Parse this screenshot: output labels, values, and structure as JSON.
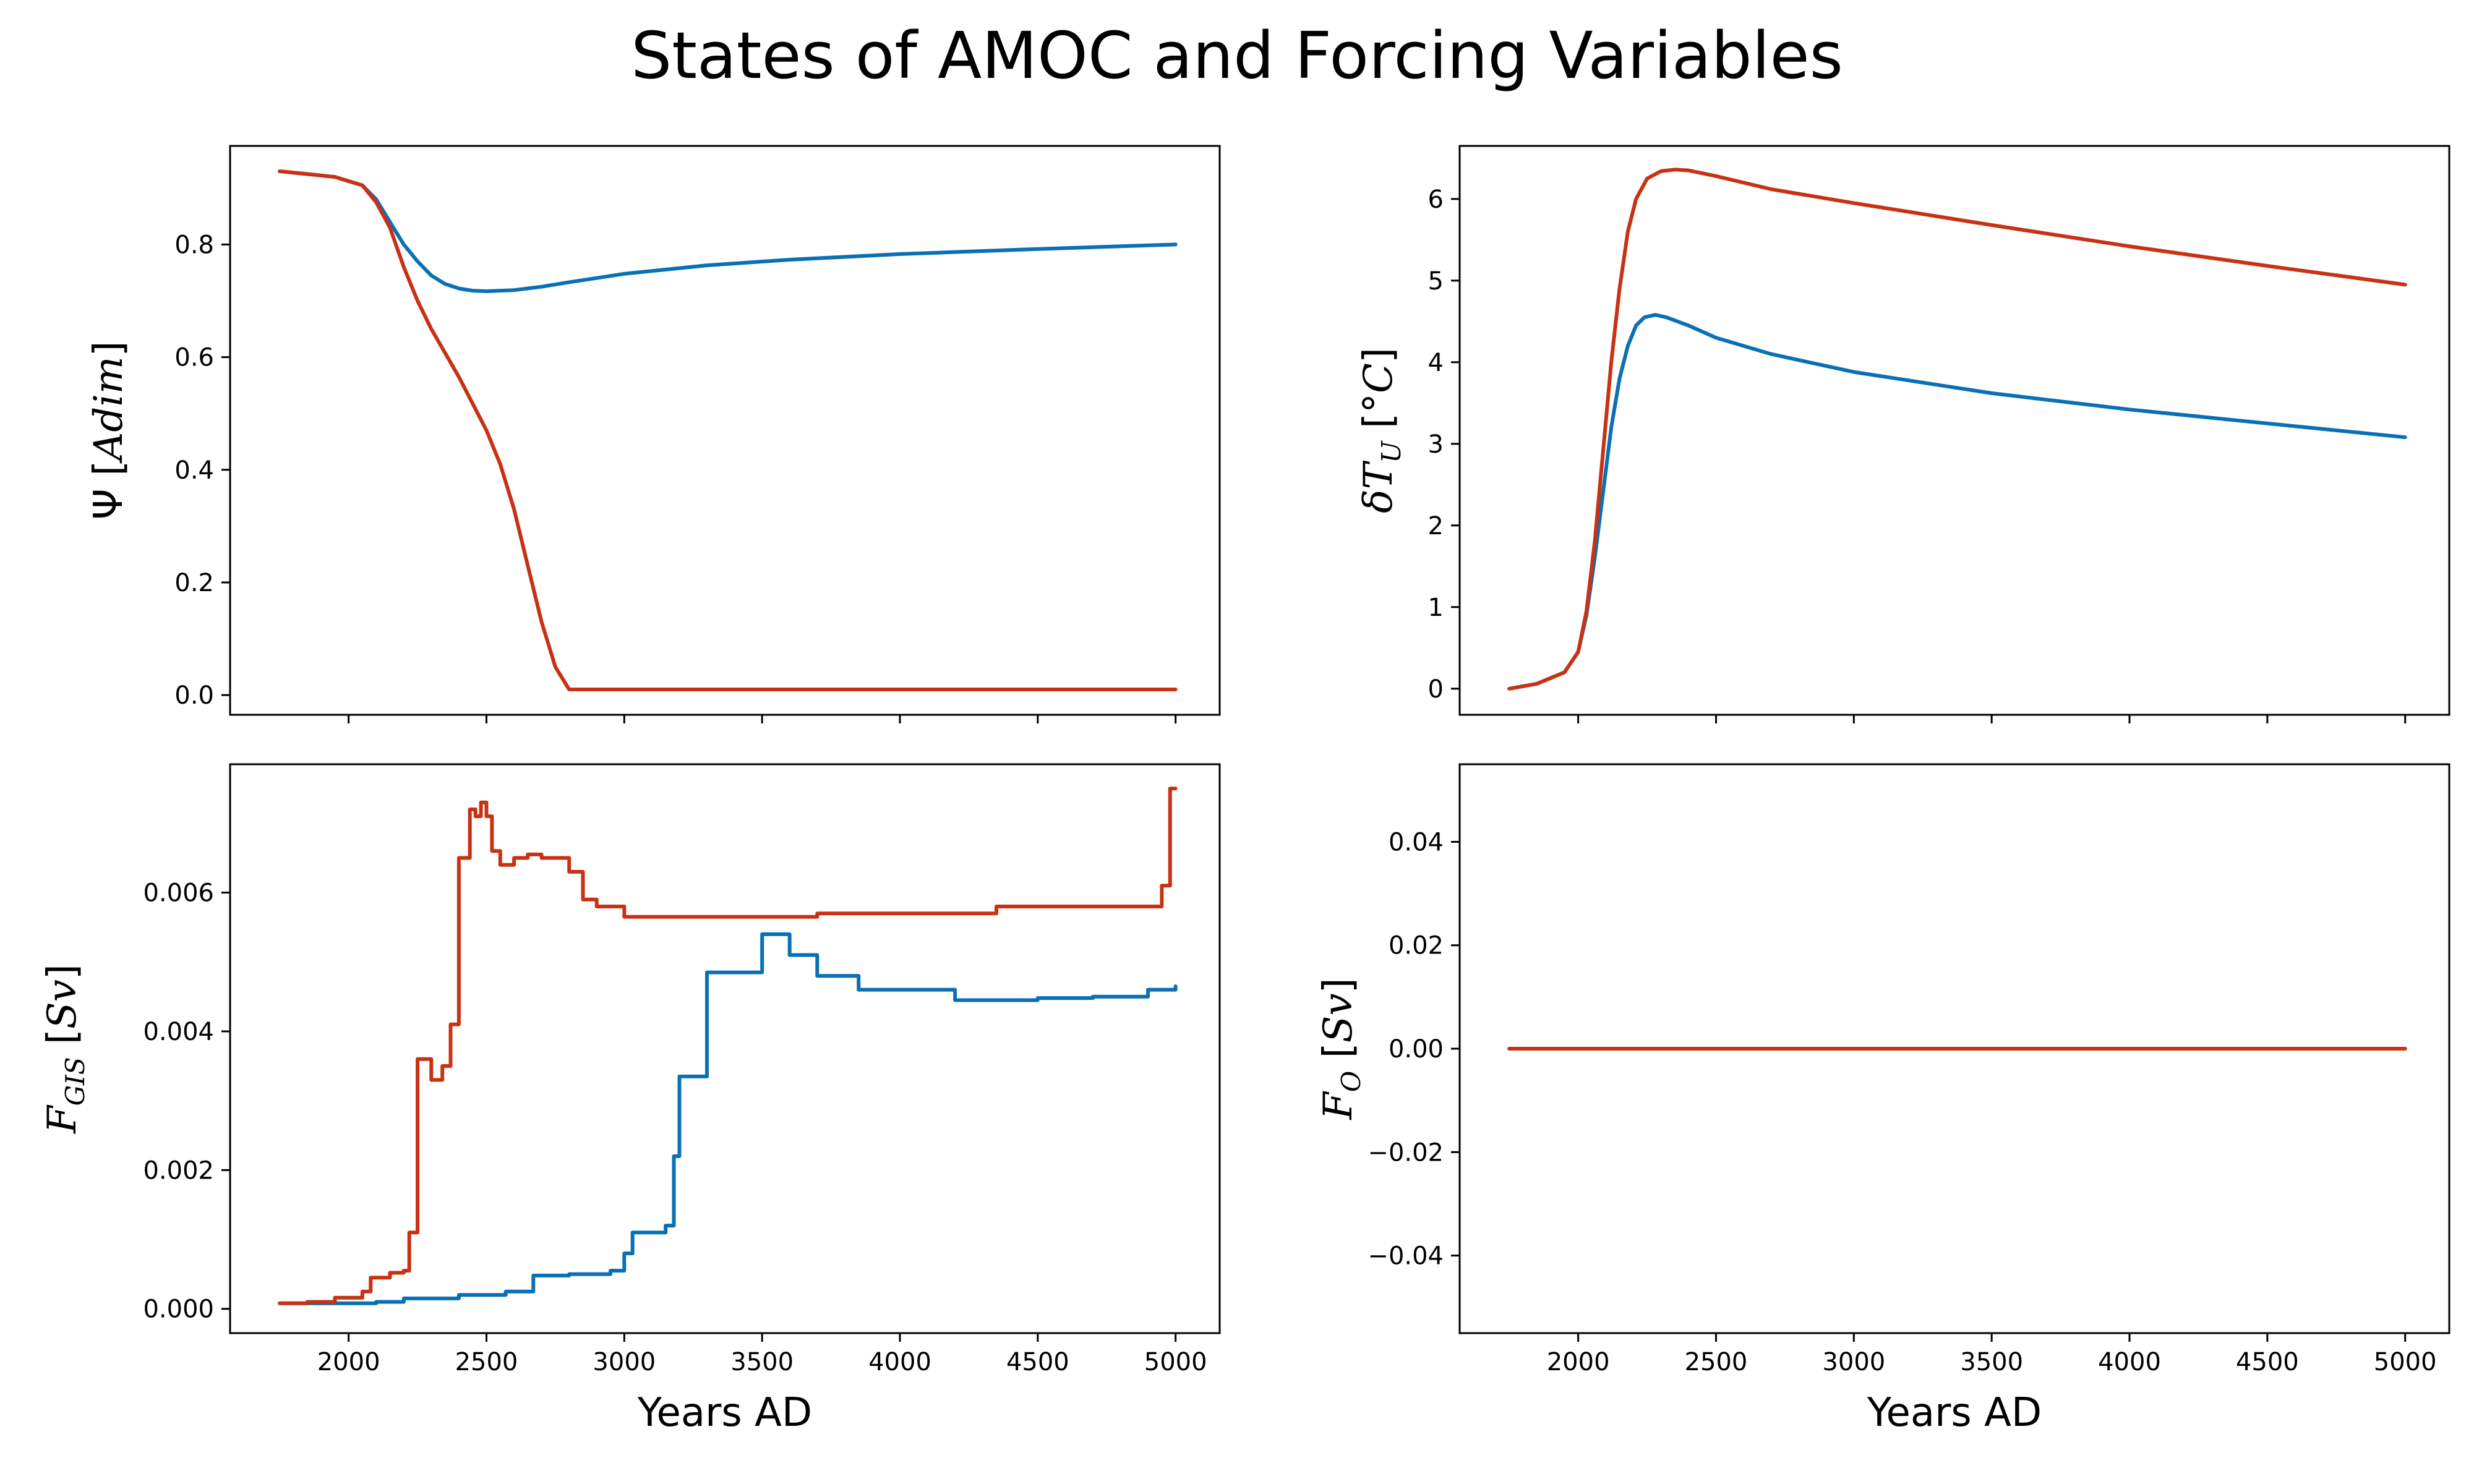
{
  "title": "States of AMOC and Forcing Variables",
  "colors": {
    "blue": "#0a70b4",
    "red": "#c83214"
  },
  "chart_data": [
    {
      "id": "psi",
      "type": "line",
      "ylabel_parts": [
        "Ψ [",
        "Adim",
        "]"
      ],
      "xlabel": "",
      "xlim": [
        1570,
        5160
      ],
      "ylim": [
        -0.035,
        0.975
      ],
      "xticks": [
        2000,
        2500,
        3000,
        3500,
        4000,
        4500,
        5000
      ],
      "xtick_labels_visible": false,
      "yticks": [
        0.0,
        0.2,
        0.4,
        0.6,
        0.8
      ],
      "ytick_labels": [
        "0.0",
        "0.2",
        "0.4",
        "0.6",
        "0.8"
      ],
      "series": [
        {
          "color": "#0a70b4",
          "x": [
            1750,
            1850,
            1950,
            2050,
            2100,
            2150,
            2200,
            2250,
            2300,
            2350,
            2400,
            2450,
            2500,
            2600,
            2700,
            2800,
            3000,
            3300,
            3600,
            4000,
            4500,
            5000
          ],
          "y": [
            0.93,
            0.925,
            0.92,
            0.905,
            0.88,
            0.84,
            0.8,
            0.77,
            0.745,
            0.73,
            0.722,
            0.718,
            0.717,
            0.719,
            0.725,
            0.733,
            0.748,
            0.763,
            0.773,
            0.783,
            0.792,
            0.8
          ]
        },
        {
          "color": "#c83214",
          "x": [
            1750,
            1850,
            1950,
            2050,
            2100,
            2150,
            2200,
            2250,
            2300,
            2400,
            2500,
            2550,
            2600,
            2650,
            2700,
            2750,
            2800,
            2820,
            3000,
            4000,
            5000
          ],
          "y": [
            0.93,
            0.925,
            0.92,
            0.905,
            0.875,
            0.83,
            0.76,
            0.7,
            0.65,
            0.565,
            0.47,
            0.41,
            0.33,
            0.23,
            0.13,
            0.05,
            0.01,
            0.01,
            0.01,
            0.01,
            0.01
          ]
        }
      ]
    },
    {
      "id": "dtu",
      "type": "line",
      "ylabel_parts": [
        "δ",
        "T",
        "U",
        " [°",
        "C",
        "]"
      ],
      "xlabel": "",
      "xlim": [
        1570,
        5160
      ],
      "ylim": [
        -0.32,
        6.65
      ],
      "xticks": [
        2000,
        2500,
        3000,
        3500,
        4000,
        4500,
        5000
      ],
      "xtick_labels_visible": false,
      "yticks": [
        0,
        1,
        2,
        3,
        4,
        5,
        6
      ],
      "ytick_labels": [
        "0",
        "1",
        "2",
        "3",
        "4",
        "5",
        "6"
      ],
      "series": [
        {
          "color": "#0a70b4",
          "x": [
            1750,
            1850,
            1950,
            2000,
            2030,
            2060,
            2090,
            2120,
            2150,
            2180,
            2210,
            2240,
            2280,
            2320,
            2400,
            2500,
            2700,
            3000,
            3500,
            4000,
            4500,
            5000
          ],
          "y": [
            0,
            0.06,
            0.2,
            0.45,
            0.9,
            1.6,
            2.4,
            3.2,
            3.8,
            4.2,
            4.45,
            4.55,
            4.58,
            4.55,
            4.45,
            4.3,
            4.1,
            3.88,
            3.62,
            3.42,
            3.25,
            3.08
          ]
        },
        {
          "color": "#c83214",
          "x": [
            1750,
            1850,
            1950,
            2000,
            2030,
            2060,
            2090,
            2120,
            2150,
            2180,
            2210,
            2250,
            2300,
            2350,
            2400,
            2500,
            2700,
            3000,
            3500,
            4000,
            4500,
            5000
          ],
          "y": [
            0,
            0.06,
            0.2,
            0.45,
            0.95,
            1.8,
            2.9,
            4.0,
            4.9,
            5.6,
            6.0,
            6.25,
            6.34,
            6.36,
            6.35,
            6.28,
            6.12,
            5.95,
            5.68,
            5.42,
            5.18,
            4.95
          ]
        }
      ]
    },
    {
      "id": "fgis",
      "type": "line",
      "ylabel_parts": [
        "F",
        "GIS",
        " [",
        "Sv",
        "]"
      ],
      "xlabel": "Years AD",
      "xlim": [
        1570,
        5160
      ],
      "ylim": [
        -0.00035,
        0.00785
      ],
      "xticks": [
        2000,
        2500,
        3000,
        3500,
        4000,
        4500,
        5000
      ],
      "xtick_labels_visible": true,
      "xtick_labels": [
        "2000",
        "2500",
        "3000",
        "3500",
        "4000",
        "4500",
        "5000"
      ],
      "yticks": [
        0.0,
        0.002,
        0.004,
        0.006
      ],
      "ytick_labels": [
        "0.000",
        "0.002",
        "0.004",
        "0.006"
      ],
      "series": [
        {
          "color": "#0a70b4",
          "step": true,
          "x": [
            1750,
            2100,
            2200,
            2400,
            2570,
            2670,
            2800,
            2950,
            3000,
            3030,
            3050,
            3150,
            3180,
            3200,
            3250,
            3300,
            3400,
            3500,
            3550,
            3600,
            3700,
            3800,
            3850,
            3900,
            4200,
            4500,
            4700,
            4900,
            5000
          ],
          "y": [
            8e-05,
            0.0001,
            0.00015,
            0.0002,
            0.00025,
            0.00048,
            0.0005,
            0.00055,
            0.0008,
            0.0011,
            0.0011,
            0.0012,
            0.0022,
            0.00335,
            0.00335,
            0.00485,
            0.00485,
            0.0054,
            0.0054,
            0.0051,
            0.0048,
            0.0048,
            0.0046,
            0.0046,
            0.00445,
            0.00448,
            0.0045,
            0.0046,
            0.00465
          ]
        },
        {
          "color": "#c83214",
          "step": true,
          "x": [
            1750,
            1850,
            1950,
            2050,
            2080,
            2150,
            2200,
            2220,
            2250,
            2280,
            2300,
            2340,
            2370,
            2400,
            2420,
            2440,
            2460,
            2480,
            2500,
            2520,
            2550,
            2600,
            2650,
            2700,
            2800,
            2850,
            2900,
            3000,
            3500,
            3700,
            4200,
            4350,
            4500,
            4900,
            4950,
            4980,
            5000
          ],
          "y": [
            8e-05,
            0.0001,
            0.00016,
            0.00025,
            0.00045,
            0.00052,
            0.00055,
            0.0011,
            0.0036,
            0.0036,
            0.0033,
            0.0035,
            0.0041,
            0.0065,
            0.0065,
            0.0072,
            0.0071,
            0.0073,
            0.0071,
            0.0066,
            0.0064,
            0.0065,
            0.00655,
            0.0065,
            0.0063,
            0.0059,
            0.0058,
            0.00565,
            0.00565,
            0.0057,
            0.0057,
            0.0058,
            0.0058,
            0.0058,
            0.0061,
            0.0075,
            0.0075
          ]
        }
      ]
    },
    {
      "id": "fo",
      "type": "line",
      "ylabel_parts": [
        "F",
        "O",
        " [",
        "Sv",
        "]"
      ],
      "xlabel": "Years AD",
      "xlim": [
        1570,
        5160
      ],
      "ylim": [
        -0.055,
        0.055
      ],
      "xticks": [
        2000,
        2500,
        3000,
        3500,
        4000,
        4500,
        5000
      ],
      "xtick_labels_visible": true,
      "xtick_labels": [
        "2000",
        "2500",
        "3000",
        "3500",
        "4000",
        "4500",
        "5000"
      ],
      "yticks": [
        -0.04,
        -0.02,
        0.0,
        0.02,
        0.04
      ],
      "ytick_labels": [
        "−0.04",
        "−0.02",
        "0.00",
        "0.02",
        "0.04"
      ],
      "series": [
        {
          "color": "#0a70b4",
          "x": [
            1750,
            5000
          ],
          "y": [
            0,
            0
          ]
        },
        {
          "color": "#c83214",
          "x": [
            1750,
            5000
          ],
          "y": [
            0,
            0
          ]
        }
      ]
    }
  ]
}
